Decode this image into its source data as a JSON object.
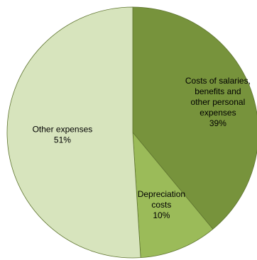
{
  "chart_data": {
    "type": "pie",
    "title": "",
    "slices": [
      {
        "label_lines": [
          "Costs of salaries,",
          "benefits and",
          "other personal",
          "expenses"
        ],
        "percent_label": "39%",
        "value": 39,
        "color": "#77933c"
      },
      {
        "label_lines": [
          "Depreciation",
          "costs"
        ],
        "percent_label": "10%",
        "value": 10,
        "color": "#9bbb59"
      },
      {
        "label_lines": [
          "Other expenses"
        ],
        "percent_label": "51%",
        "value": 51,
        "color": "#d7e4bd"
      }
    ],
    "start_angle": "12 o'clock",
    "direction": "clockwise",
    "edge_color": "#5f7530"
  }
}
